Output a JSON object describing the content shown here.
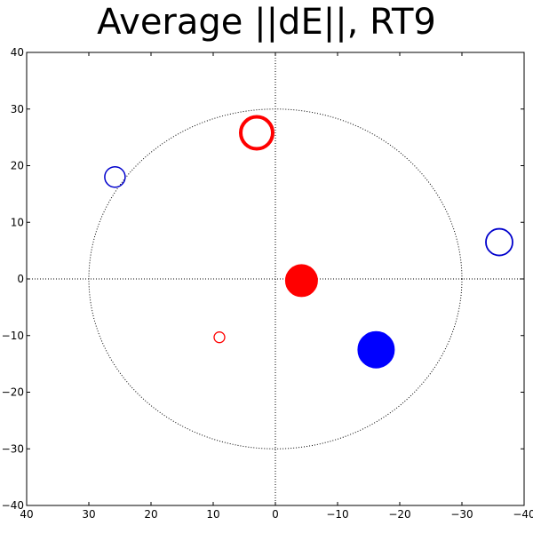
{
  "chart_data": {
    "type": "scatter",
    "title": "Average ||dE||, RT9",
    "xlim": [
      40,
      -40
    ],
    "ylim": [
      -40,
      40
    ],
    "x_ticks": [
      40,
      30,
      20,
      10,
      0,
      -10,
      -20,
      -30,
      -40
    ],
    "y_ticks": [
      40,
      30,
      20,
      10,
      0,
      -10,
      -20,
      -30,
      -40
    ],
    "grid": false,
    "reference_lines": {
      "x": 0,
      "y": 0,
      "style": "dotted"
    },
    "reference_circle": {
      "center": [
        0,
        0
      ],
      "radius": 30,
      "style": "dotted"
    },
    "points": [
      {
        "x": 3,
        "y": 25.8,
        "size": 18,
        "color": "#ff0000",
        "filled": false,
        "line_width": 4
      },
      {
        "x": -4.2,
        "y": -0.3,
        "size": 18,
        "color": "#ff0000",
        "filled": true,
        "line_width": 1
      },
      {
        "x": 9,
        "y": -10.3,
        "size": 6,
        "color": "#ff0000",
        "filled": false,
        "line_width": 1.3
      },
      {
        "x": 25.8,
        "y": 18,
        "size": 11.5,
        "color": "#0000cc",
        "filled": false,
        "line_width": 1.5
      },
      {
        "x": -36,
        "y": 6.5,
        "size": 15,
        "color": "#0000cc",
        "filled": false,
        "line_width": 1.8
      },
      {
        "x": -16.2,
        "y": -12.5,
        "size": 20.5,
        "color": "#0000ff",
        "filled": true,
        "line_width": 1
      }
    ]
  }
}
